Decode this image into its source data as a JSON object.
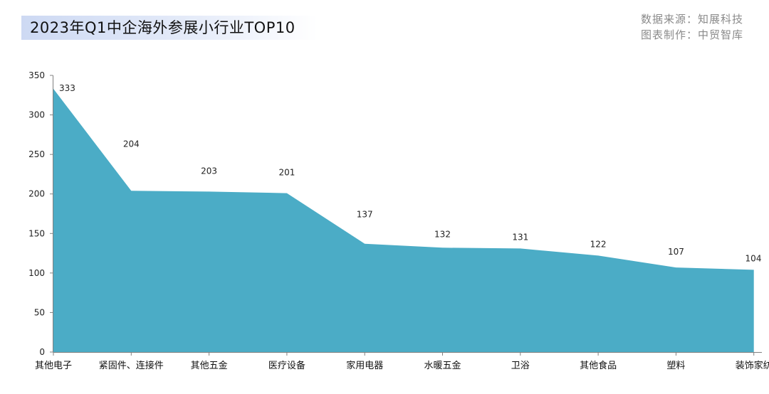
{
  "title": "2023年Q1中企海外参展小行业TOP10",
  "source_line": "数据来源：知展科技",
  "made_by_line": "图表制作：中贸智库",
  "colors": {
    "area_fill": "#4bacc6",
    "axis": "#808080"
  },
  "chart_data": {
    "type": "area",
    "title": "2023年Q1中企海外参展小行业TOP10",
    "xlabel": "",
    "ylabel": "",
    "categories": [
      "其他电子",
      "紧固件、连接件",
      "其他五金",
      "医疗设备",
      "家用电器",
      "水暖五金",
      "卫浴",
      "其他食品",
      "塑料",
      "装饰家纺"
    ],
    "values": [
      333,
      204,
      203,
      201,
      137,
      132,
      131,
      122,
      107,
      104
    ],
    "ylim": [
      0,
      350
    ],
    "yticks": [
      0,
      50,
      100,
      150,
      200,
      250,
      300,
      350
    ],
    "grid": false,
    "legend": "none"
  }
}
